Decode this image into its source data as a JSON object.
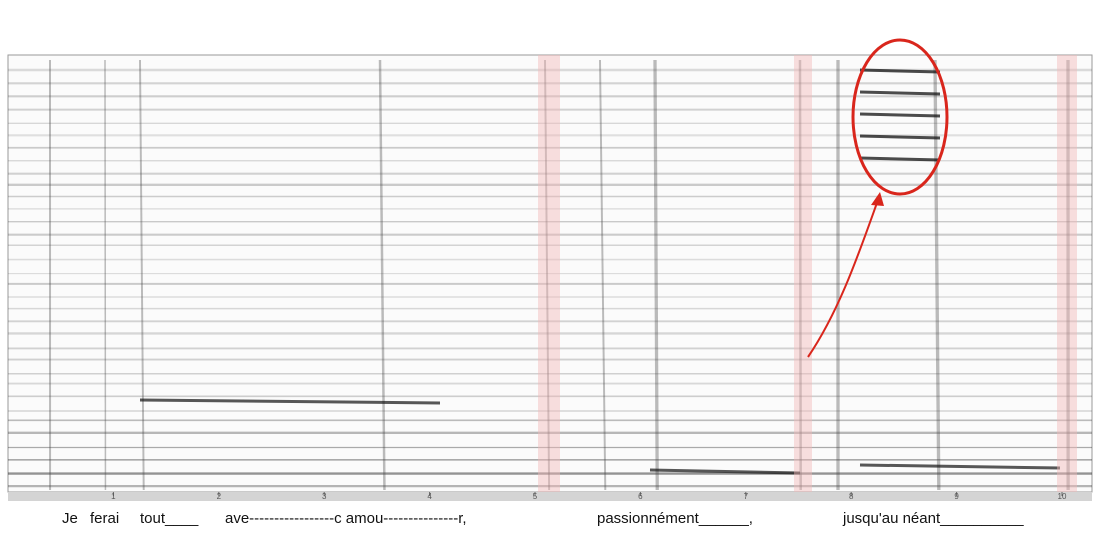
{
  "time_axis": {
    "labels": [
      "1",
      "2",
      "3",
      "4",
      "5",
      "6",
      "7",
      "8",
      "9",
      "10"
    ]
  },
  "lyrics": [
    "Je",
    "ferai",
    "tout____",
    "ave-----------------c amou---------------r,",
    "passionnément______,",
    "jusqu'au néant__________"
  ]
}
